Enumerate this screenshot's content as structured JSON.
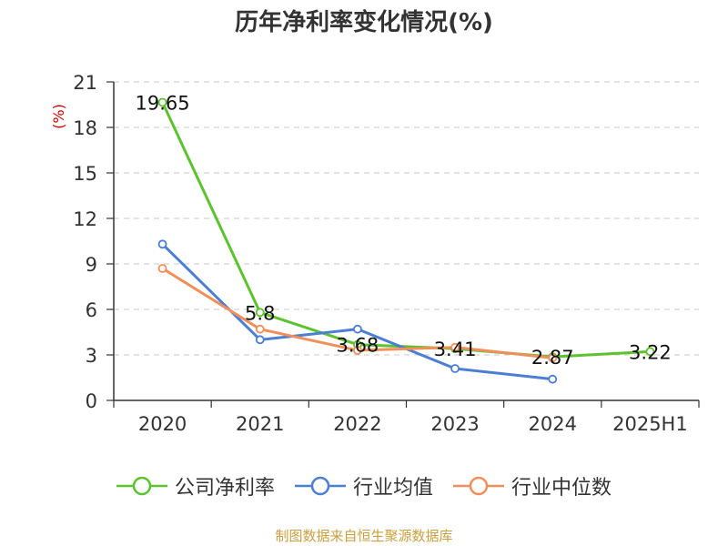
{
  "chart_data": {
    "type": "line",
    "title": "历年净利率变化情况(%)",
    "ylabel": "(%)",
    "xlabel": "",
    "categories": [
      "2020",
      "2021",
      "2022",
      "2023",
      "2024",
      "2025H1"
    ],
    "ylim": [
      0,
      21
    ],
    "yticks": [
      0,
      3,
      6,
      9,
      12,
      15,
      18,
      21
    ],
    "grid": true,
    "legend_position": "bottom",
    "series": [
      {
        "name": "公司净利率",
        "color": "#5cc22e",
        "values": [
          19.65,
          5.8,
          3.68,
          3.41,
          2.87,
          3.22
        ],
        "labels": [
          "19.65",
          "5.8",
          "3.68",
          "3.41",
          "2.87",
          "3.22"
        ]
      },
      {
        "name": "行业均值",
        "color": "#4a7fd4",
        "values": [
          10.3,
          4.0,
          4.7,
          2.1,
          1.4,
          null
        ]
      },
      {
        "name": "行业中位数",
        "color": "#f28e5a",
        "values": [
          8.7,
          4.7,
          3.3,
          3.5,
          2.8,
          null
        ]
      }
    ]
  },
  "footer": {
    "source": "制图数据来自恒生聚源数据库"
  }
}
